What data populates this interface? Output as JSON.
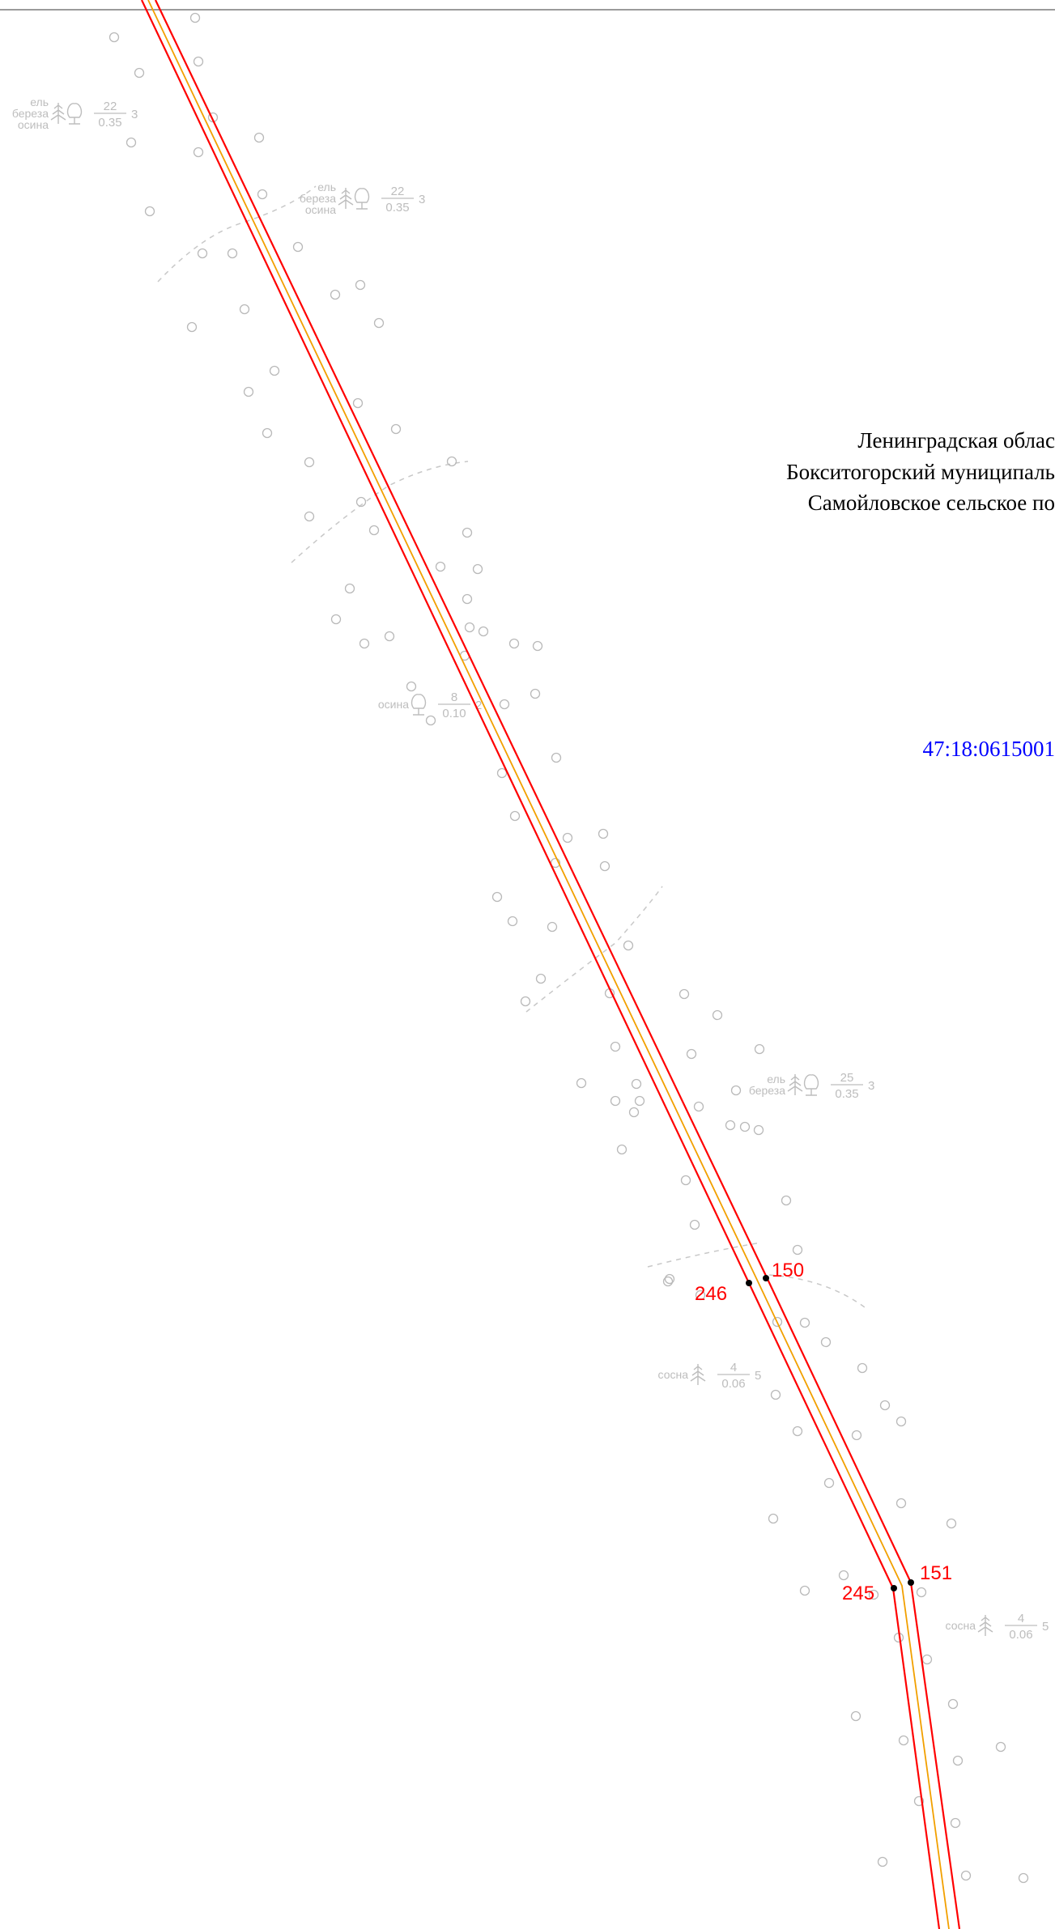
{
  "region": {
    "line1": "Ленинградская облас",
    "line2": "Бокситогорский муниципаль",
    "line3": "Самойловское сельское по"
  },
  "cadastral_number": "47:18:0615001",
  "boundary_points": [
    {
      "id": "p150",
      "label": "150"
    },
    {
      "id": "p246",
      "label": "246"
    },
    {
      "id": "p151",
      "label": "151"
    },
    {
      "id": "p245",
      "label": "245"
    }
  ],
  "forest_stands": [
    {
      "id": "fs1",
      "species": [
        "ель",
        "береза",
        "осина"
      ],
      "height": "22",
      "diameter": "0.35",
      "density": "3"
    },
    {
      "id": "fs2",
      "species": [
        "ель",
        "береза",
        "осина"
      ],
      "height": "22",
      "diameter": "0.35",
      "density": "3"
    },
    {
      "id": "fs3",
      "species": [
        "осина"
      ],
      "height": "8",
      "diameter": "0.10",
      "density": "2"
    },
    {
      "id": "fs4",
      "species": [
        "ель",
        "береза"
      ],
      "height": "25",
      "diameter": "0.35",
      "density": "3"
    },
    {
      "id": "fs5",
      "species": [
        "сосна"
      ],
      "height": "4",
      "diameter": "0.06",
      "density": "5"
    },
    {
      "id": "fs6",
      "species": [
        "сосна"
      ],
      "height": "4",
      "diameter": "0.06",
      "density": "5"
    }
  ],
  "colors": {
    "boundary": "#ff0000",
    "centerline": "#f2a000",
    "cadastral": "#0000ff",
    "forest_symbols": "#bdbdbd",
    "point_marker": "#000000"
  },
  "icons": [
    "conifer-tree-icon",
    "deciduous-tree-icon",
    "bush-circle-icon"
  ]
}
